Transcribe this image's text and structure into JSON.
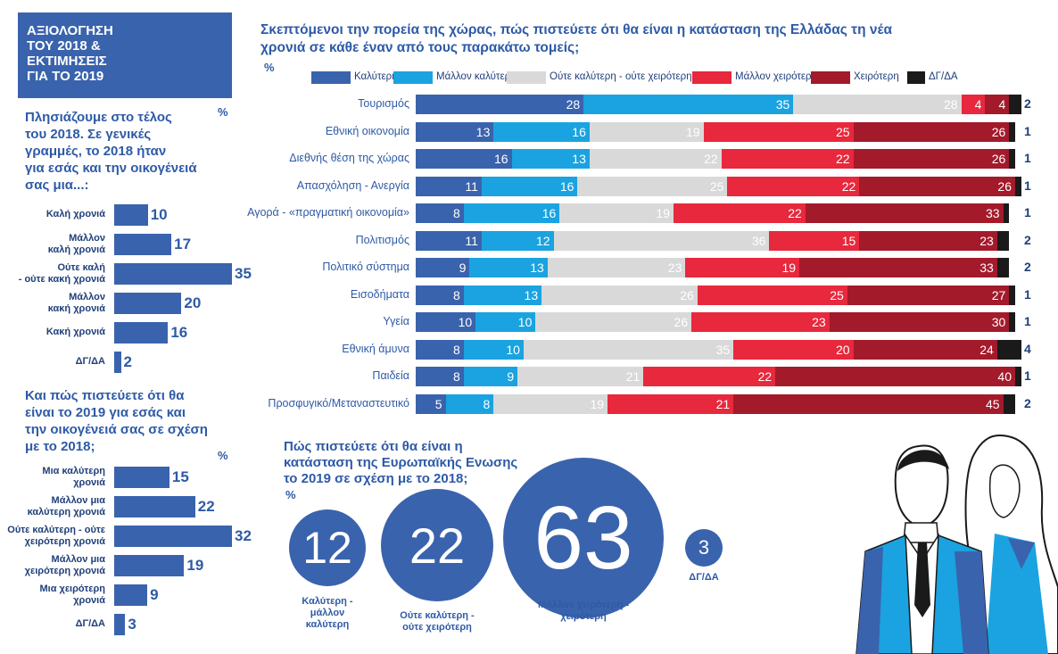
{
  "colors": {
    "better": "#3a63ad",
    "rather_better": "#1aa3e0",
    "neither": "#d9d9d9",
    "rather_worse": "#e8283c",
    "worse": "#a31a2b",
    "dk": "#1a1a1a"
  },
  "left": {
    "title_lines": [
      "ΑΞΙΟΛΟΓΗΣΗ",
      "ΤΟΥ 2018 &",
      "ΕΚΤΙΜΗΣΕΙΣ",
      "ΓΙΑ ΤΟ 2019"
    ],
    "q1_lines": [
      "Πλησιάζουμε στο τέλος",
      "του 2018. Σε γενικές",
      "γραμμές, το 2018 ήταν",
      "για εσάς και την οικογένειά",
      "σας μια...:"
    ],
    "q1_pct": "%",
    "q2_lines": [
      "Και πώς πιστεύετε ότι θα",
      "είναι το 2019 για εσάς και",
      "την οικογένειά σας σε σχέση",
      "με το 2018;"
    ],
    "q2_pct": "%"
  },
  "right": {
    "title_lines": [
      "Σκεπτόμενοι την πορεία της χώρας, πώς πιστεύετε ότι θα είναι η κατάσταση της Ελλάδας τη νέα",
      "χρονιά σε κάθε έναν από τους παρακάτω τομείς;"
    ],
    "pct": "%"
  },
  "eu": {
    "question_lines": [
      "Πώς πιστεύετε ότι θα είναι η",
      "κατάσταση της Ευρωπαϊκής Ενωσης",
      "το 2019 σε σχέση με το 2018;"
    ],
    "pct": "%"
  },
  "chart_data": [
    {
      "type": "bar",
      "orientation": "horizontal",
      "title": "Πλησιάζουμε στο τέλος του 2018. Σε γενικές γραμμές, το 2018 ήταν για εσάς και την οικογένειά σας μια...:",
      "unit": "%",
      "categories": [
        [
          "Καλή χρονιά"
        ],
        [
          "Μάλλον",
          "καλή χρονιά"
        ],
        [
          "Ούτε καλή",
          "- ούτε κακή χρονιά"
        ],
        [
          "Μάλλον",
          "κακή χρονιά"
        ],
        [
          "Κακή χρονιά"
        ],
        [
          "ΔΓ/ΔΑ"
        ]
      ],
      "values": [
        10,
        17,
        35,
        20,
        16,
        2
      ],
      "xlim": [
        0,
        35
      ]
    },
    {
      "type": "bar",
      "orientation": "horizontal",
      "title": "Και πώς πιστεύετε ότι θα είναι το 2019 για εσάς και την οικογένειά σας σε σχέση με το 2018;",
      "unit": "%",
      "categories": [
        [
          "Μια καλύτερη",
          "χρονιά"
        ],
        [
          "Μάλλον μια",
          "καλύτερη χρονιά"
        ],
        [
          "Ούτε καλύτερη - ούτε",
          "χειρότερη χρονιά"
        ],
        [
          "Μάλλον μια",
          "χειρότερη χρονιά"
        ],
        [
          "Μια χειρότερη",
          "χρονιά"
        ],
        [
          "ΔΓ/ΔΑ"
        ]
      ],
      "values": [
        15,
        22,
        32,
        19,
        9,
        3
      ],
      "xlim": [
        0,
        32
      ]
    },
    {
      "type": "bar",
      "stacked": true,
      "orientation": "horizontal",
      "title": "Σκεπτόμενοι την πορεία της χώρας, πώς πιστεύετε ότι θα είναι η κατάσταση της Ελλάδας τη νέα χρονιά σε κάθε έναν από τους παρακάτω τομείς;",
      "unit": "%",
      "legend": [
        "Καλύτερη",
        "Μάλλον καλύτερη",
        "Ούτε καλύτερη - ούτε χειρότερη",
        "Μάλλον χειρότερη",
        "Χειρότερη",
        "ΔΓ/ΔΑ"
      ],
      "categories": [
        "Τουρισμός",
        "Εθνική οικονομία",
        "Διεθνής θέση της χώρας",
        "Απασχόληση - Ανεργία",
        "Αγορά - «πραγματική οικονομία»",
        "Πολιτισμός",
        "Πολιτικό σύστημα",
        "Εισοδήματα",
        "Υγεία",
        "Εθνική άμυνα",
        "Παιδεία",
        "Προσφυγικό/Μεταναστευτικό"
      ],
      "series": [
        {
          "name": "Καλύτερη",
          "values": [
            28,
            13,
            16,
            11,
            8,
            11,
            9,
            8,
            10,
            8,
            8,
            5
          ]
        },
        {
          "name": "Μάλλον καλύτερη",
          "values": [
            35,
            16,
            13,
            16,
            16,
            12,
            13,
            13,
            10,
            10,
            9,
            8
          ]
        },
        {
          "name": "Ούτε καλύτερη - ούτε χειρότερη",
          "values": [
            28,
            19,
            22,
            25,
            19,
            36,
            23,
            26,
            26,
            35,
            21,
            19
          ]
        },
        {
          "name": "Μάλλον χειρότερη",
          "values": [
            4,
            25,
            22,
            22,
            22,
            15,
            19,
            25,
            23,
            20,
            22,
            21
          ]
        },
        {
          "name": "Χειρότερη",
          "values": [
            4,
            26,
            26,
            26,
            33,
            23,
            33,
            27,
            30,
            24,
            40,
            45
          ]
        },
        {
          "name": "ΔΓ/ΔΑ",
          "values": [
            2,
            1,
            1,
            1,
            1,
            2,
            2,
            1,
            1,
            4,
            1,
            2
          ]
        }
      ],
      "xlim": [
        0,
        100
      ]
    },
    {
      "type": "bubble",
      "title": "Πώς πιστεύετε ότι θα είναι η κατάσταση της Ευρωπαϊκής Ενωσης το 2019 σε σχέση με το 2018;",
      "unit": "%",
      "categories": [
        [
          "Καλύτερη -",
          "μάλλον",
          "καλύτερη"
        ],
        [
          "Ούτε καλύτερη -",
          "ούτε χειρότερη"
        ],
        [
          "Μάλλον χειρότερη -",
          "χειρότερη"
        ],
        [
          "ΔΓ/ΔΑ"
        ]
      ],
      "values": [
        12,
        22,
        63,
        3
      ]
    }
  ]
}
